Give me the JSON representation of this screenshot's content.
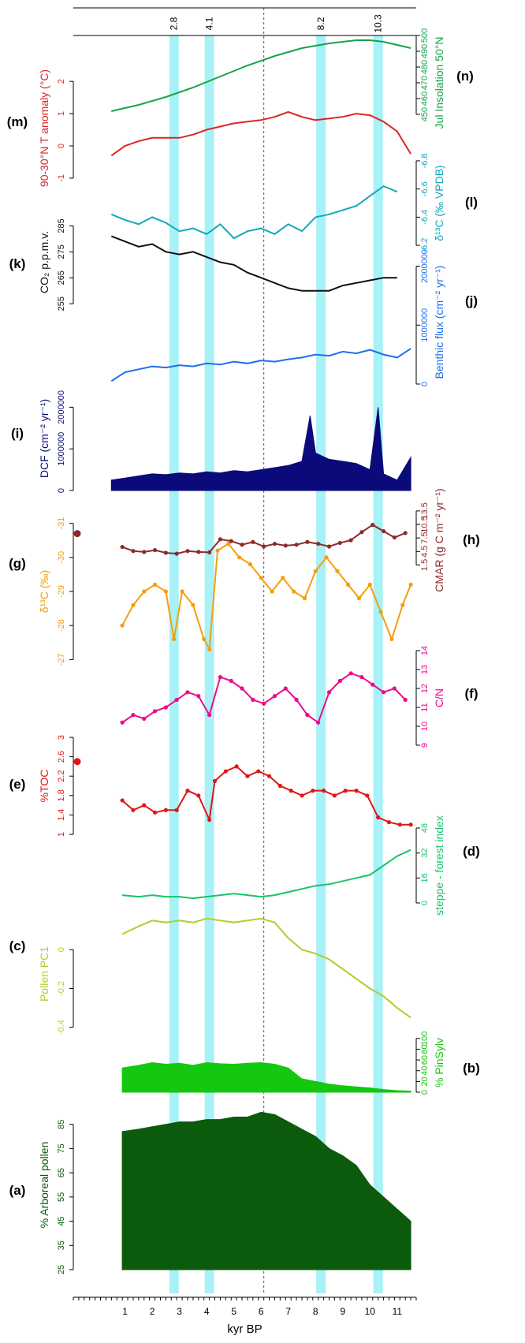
{
  "chart_data": {
    "type": "line",
    "x_axis": {
      "label": "kyr BP",
      "range": [
        -0.9,
        11.7
      ],
      "major_ticks": [
        1,
        2,
        3,
        4,
        5,
        6,
        7,
        8,
        9,
        10,
        11
      ],
      "minor_step": 0.2
    },
    "highlight_bands": [
      {
        "label": "2.8",
        "x": 2.8
      },
      {
        "label": "4.1",
        "x": 4.1
      },
      {
        "label": "8.2",
        "x": 8.2
      },
      {
        "label": "10.3",
        "x": 10.3
      }
    ],
    "band_color": "#a7f1f7",
    "reference_line": {
      "x": 6.1
    },
    "panels": [
      {
        "id": "n",
        "letter": "(n)",
        "ylabel": "Jul Insolation 50°N",
        "side": "right",
        "color": "#16a34a",
        "kind": "line",
        "ylim": [
          440,
          500
        ],
        "ticks": [
          450,
          460,
          470,
          480,
          490,
          500
        ],
        "x": [
          0.5,
          1.5,
          2.5,
          3.5,
          4.5,
          5.5,
          6.5,
          7.5,
          8.5,
          9.5,
          10,
          10.5,
          11.5
        ],
        "y": [
          452,
          456,
          461,
          467,
          474,
          481,
          487,
          492,
          495,
          497,
          497,
          496,
          492
        ]
      },
      {
        "id": "m",
        "letter": "(m)",
        "ylabel": "90-30°N T anomaly (°C)",
        "side": "left",
        "color": "#dc2626",
        "kind": "line",
        "ylim": [
          -1.1,
          2.2
        ],
        "ticks": [
          -1.0,
          0.0,
          1.0,
          2.0
        ],
        "x": [
          0.5,
          1,
          1.5,
          2,
          2.5,
          3,
          3.5,
          4,
          4.5,
          5,
          5.5,
          6,
          6.5,
          7,
          7.5,
          8,
          8.5,
          9,
          9.5,
          10,
          10.5,
          11,
          11.5
        ],
        "y": [
          -0.3,
          0.0,
          0.15,
          0.25,
          0.25,
          0.25,
          0.35,
          0.5,
          0.6,
          0.7,
          0.75,
          0.8,
          0.9,
          1.05,
          0.9,
          0.8,
          0.85,
          0.9,
          1.0,
          0.95,
          0.75,
          0.45,
          -0.25
        ]
      },
      {
        "id": "l",
        "letter": "(l)",
        "ylabel": "δ¹³C (‰ VPDB)",
        "side": "right",
        "color": "#14a8b8",
        "kind": "line",
        "ylim": [
          -6.15,
          -6.85
        ],
        "ticks": [
          -6.2,
          -6.4,
          -6.6,
          -6.8
        ],
        "x": [
          0.5,
          1,
          1.5,
          2,
          2.5,
          3,
          3.5,
          4,
          4.5,
          5,
          5.5,
          6,
          6.5,
          7,
          7.5,
          8,
          8.5,
          9,
          9.5,
          10,
          10.5,
          11
        ],
        "y": [
          -6.42,
          -6.38,
          -6.35,
          -6.4,
          -6.36,
          -6.3,
          -6.32,
          -6.28,
          -6.35,
          -6.25,
          -6.3,
          -6.32,
          -6.28,
          -6.35,
          -6.3,
          -6.4,
          -6.42,
          -6.45,
          -6.48,
          -6.55,
          -6.62,
          -6.58
        ]
      },
      {
        "id": "k",
        "letter": "(k)",
        "ylabel": "CO₂ p.p.m.v.",
        "side": "left",
        "color": "#111111",
        "kind": "line",
        "ylim": [
          252,
          290
        ],
        "ticks": [
          255,
          265,
          275,
          285
        ],
        "x": [
          0.5,
          1,
          1.5,
          2,
          2.5,
          3,
          3.5,
          4,
          4.5,
          5,
          5.5,
          6,
          6.5,
          7,
          7.5,
          8,
          8.5,
          9,
          9.5,
          10,
          10.5,
          11
        ],
        "y": [
          281,
          279,
          277,
          278,
          275,
          274,
          275,
          273,
          271,
          270,
          267,
          265,
          263,
          261,
          260,
          260,
          260,
          262,
          263,
          264,
          265,
          265
        ]
      },
      {
        "id": "j",
        "letter": "(j)",
        "ylabel": "Benthic flux (cm⁻² yr⁻¹)",
        "side": "right",
        "color": "#1e6ff0",
        "kind": "line",
        "ylim": [
          0,
          2100000
        ],
        "ticks": [
          0,
          1000000,
          2000000
        ],
        "x": [
          0.5,
          1,
          1.5,
          2,
          2.5,
          3,
          3.5,
          4,
          4.5,
          5,
          5.5,
          6,
          6.5,
          7,
          7.5,
          8,
          8.5,
          9,
          9.5,
          10,
          10.5,
          11,
          11.5
        ],
        "y": [
          50000,
          200000,
          250000,
          300000,
          280000,
          320000,
          300000,
          350000,
          330000,
          380000,
          350000,
          400000,
          380000,
          420000,
          450000,
          500000,
          480000,
          550000,
          520000,
          580000,
          500000,
          450000,
          600000
        ]
      },
      {
        "id": "i",
        "letter": "(i)",
        "ylabel": "DCF (cm⁻² yr⁻¹)",
        "side": "left",
        "color": "#0a0a7a",
        "kind": "area",
        "ylim": [
          0,
          2500000
        ],
        "ticks": [
          0,
          1000000,
          2000000
        ],
        "x": [
          0.5,
          1,
          1.5,
          2,
          2.5,
          3,
          3.5,
          4,
          4.5,
          5,
          5.5,
          6,
          6.5,
          7,
          7.5,
          7.8,
          8,
          8.5,
          9,
          9.5,
          10,
          10.3,
          10.5,
          11,
          11.5
        ],
        "y": [
          250000,
          300000,
          350000,
          400000,
          380000,
          420000,
          400000,
          450000,
          420000,
          480000,
          450000,
          500000,
          550000,
          600000,
          700000,
          1800000,
          900000,
          750000,
          700000,
          650000,
          500000,
          2000000,
          400000,
          250000,
          800000
        ]
      },
      {
        "id": "h",
        "letter": "(h)",
        "ylabel": "CMAR (g C m⁻² yr⁻¹)",
        "side": "right",
        "color": "#8b2a2a",
        "kind": "line_points",
        "ylim": [
          0,
          14
        ],
        "ticks": [
          1.5,
          4.5,
          7.5,
          10.5,
          13.5
        ],
        "x": [
          0.9,
          1.3,
          1.7,
          2.1,
          2.5,
          2.9,
          3.3,
          3.7,
          4.1,
          4.5,
          4.9,
          5.3,
          5.7,
          6.1,
          6.5,
          6.9,
          7.3,
          7.7,
          8.1,
          8.5,
          8.9,
          9.3,
          9.7,
          10.1,
          10.5,
          10.9,
          11.3
        ],
        "y": [
          5.5,
          4.6,
          4.4,
          4.8,
          4.2,
          4.0,
          4.6,
          4.4,
          4.3,
          7.2,
          6.8,
          6.0,
          6.6,
          5.6,
          6.2,
          5.8,
          6.0,
          6.6,
          6.2,
          5.6,
          6.4,
          7.0,
          8.8,
          10.4,
          9.0,
          7.6,
          8.6
        ]
      },
      {
        "id": "g",
        "letter": "(g)",
        "ylabel": "δ¹³C (‰)",
        "side": "left",
        "color": "#f59e0b",
        "kind": "line_points",
        "ylim": [
          -26.8,
          -31.2
        ],
        "ticks": [
          -27,
          -28,
          -29,
          -30,
          -31
        ],
        "x": [
          0.9,
          1.3,
          1.7,
          2.1,
          2.5,
          2.8,
          3.1,
          3.5,
          3.9,
          4.1,
          4.4,
          4.8,
          5.2,
          5.6,
          6.0,
          6.4,
          6.8,
          7.2,
          7.6,
          8.0,
          8.4,
          8.8,
          9.2,
          9.6,
          10.0,
          10.4,
          10.8,
          11.2,
          11.5
        ],
        "y": [
          -28.0,
          -28.6,
          -29.0,
          -29.2,
          -29.0,
          -27.6,
          -29.0,
          -28.6,
          -27.6,
          -27.3,
          -30.2,
          -30.4,
          -30.0,
          -29.8,
          -29.4,
          -29.0,
          -29.4,
          -29.0,
          -28.8,
          -29.6,
          -30.0,
          -29.6,
          -29.2,
          -28.8,
          -29.2,
          -28.4,
          -27.6,
          -28.6,
          -29.2
        ]
      },
      {
        "id": "f",
        "letter": "(f)",
        "ylabel": "C/N",
        "side": "right",
        "color": "#ec0a8b",
        "kind": "line_points",
        "ylim": [
          9,
          14
        ],
        "ticks": [
          9,
          10,
          11,
          12,
          13,
          14
        ],
        "x": [
          0.9,
          1.3,
          1.7,
          2.1,
          2.5,
          2.9,
          3.3,
          3.7,
          4.1,
          4.5,
          4.9,
          5.3,
          5.7,
          6.1,
          6.5,
          6.9,
          7.3,
          7.7,
          8.1,
          8.5,
          8.9,
          9.3,
          9.7,
          10.1,
          10.5,
          10.9,
          11.3
        ],
        "y": [
          10.2,
          10.6,
          10.4,
          10.8,
          11.0,
          11.4,
          11.8,
          11.6,
          10.6,
          12.6,
          12.4,
          12.0,
          11.4,
          11.2,
          11.6,
          12.0,
          11.4,
          10.6,
          10.2,
          11.8,
          12.4,
          12.8,
          12.6,
          12.2,
          11.8,
          12.0,
          11.4
        ]
      },
      {
        "id": "e",
        "letter": "(e)",
        "ylabel": "%TOC",
        "side": "left",
        "color": "#e01515",
        "kind": "line_points",
        "ylim": [
          1.0,
          3.0
        ],
        "ticks": [
          1.0,
          1.4,
          1.8,
          2.2,
          2.6,
          3.0
        ],
        "x": [
          0.9,
          1.3,
          1.7,
          2.1,
          2.5,
          2.9,
          3.3,
          3.7,
          4.1,
          4.3,
          4.7,
          5.1,
          5.5,
          5.9,
          6.3,
          6.7,
          7.1,
          7.5,
          7.9,
          8.3,
          8.7,
          9.1,
          9.5,
          9.9,
          10.3,
          10.7,
          11.1,
          11.5
        ],
        "y": [
          1.7,
          1.5,
          1.6,
          1.45,
          1.5,
          1.5,
          1.9,
          1.8,
          1.3,
          2.1,
          2.3,
          2.4,
          2.2,
          2.3,
          2.2,
          2.0,
          1.9,
          1.8,
          1.9,
          1.9,
          1.8,
          1.9,
          1.9,
          1.8,
          1.35,
          1.25,
          1.2,
          1.2
        ]
      },
      {
        "id": "d",
        "letter": "(d)",
        "ylabel": "steppe - forest index",
        "side": "right",
        "color": "#17c46a",
        "kind": "line",
        "ylim": [
          0,
          48
        ],
        "ticks": [
          0,
          16,
          32,
          48
        ],
        "x": [
          0.9,
          1.5,
          2,
          2.5,
          3,
          3.5,
          4,
          4.5,
          5,
          5.5,
          6,
          6.5,
          7,
          7.5,
          8,
          8.5,
          9,
          9.5,
          10,
          10.5,
          11,
          11.5
        ],
        "y": [
          5,
          4,
          5,
          4,
          4,
          3,
          4,
          5,
          6,
          5,
          4,
          5,
          7,
          9,
          11,
          12,
          14,
          16,
          18,
          24,
          30,
          34
        ]
      },
      {
        "id": "c",
        "letter": "(c)",
        "ylabel": "Pollen PC1",
        "side": "left",
        "color": "#b5cc2a",
        "kind": "line",
        "ylim": [
          -0.45,
          0.2
        ],
        "ticks": [
          -0.4,
          -0.2,
          0.0
        ],
        "x": [
          0.9,
          1.5,
          2,
          2.5,
          3,
          3.5,
          4,
          4.5,
          5,
          5.5,
          6,
          6.5,
          7,
          7.5,
          8,
          8.5,
          9,
          9.5,
          10,
          10.5,
          11,
          11.5
        ],
        "y": [
          0.08,
          0.12,
          0.15,
          0.14,
          0.15,
          0.14,
          0.16,
          0.15,
          0.14,
          0.15,
          0.16,
          0.14,
          0.06,
          0.0,
          -0.02,
          -0.05,
          -0.1,
          -0.15,
          -0.2,
          -0.24,
          -0.3,
          -0.35
        ]
      },
      {
        "id": "b",
        "letter": "(b)",
        "ylabel": "% PinSylv",
        "side": "right",
        "color": "#14c80f",
        "kind": "area",
        "ylim": [
          0,
          110
        ],
        "ticks": [
          0,
          20,
          40,
          60,
          80,
          100
        ],
        "x": [
          0.9,
          1.5,
          2,
          2.5,
          3,
          3.5,
          4,
          4.5,
          5,
          5.5,
          6,
          6.5,
          7,
          7.5,
          8,
          8.5,
          9,
          9.5,
          10,
          10.5,
          11,
          11.5
        ],
        "y": [
          45,
          50,
          55,
          52,
          54,
          50,
          55,
          53,
          52,
          54,
          55,
          52,
          45,
          25,
          20,
          15,
          12,
          10,
          8,
          5,
          3,
          2
        ]
      },
      {
        "id": "a",
        "letter": "(a)",
        "ylabel": "% Arboreal pollen",
        "side": "left",
        "color": "#0c5a0c",
        "kind": "area",
        "ylim": [
          25,
          95
        ],
        "ticks": [
          25,
          35,
          45,
          55,
          65,
          75,
          85
        ],
        "x": [
          0.9,
          1.5,
          2,
          2.5,
          3,
          3.5,
          4,
          4.5,
          5,
          5.5,
          6,
          6.5,
          7,
          7.5,
          8,
          8.5,
          9,
          9.5,
          10,
          10.5,
          11,
          11.5
        ],
        "y": [
          82,
          83,
          84,
          85,
          86,
          86,
          87,
          87,
          88,
          88,
          90,
          89,
          86,
          83,
          80,
          75,
          72,
          68,
          60,
          55,
          50,
          45
        ]
      }
    ],
    "point_markers": [
      {
        "panel": "g",
        "x": -0.5,
        "y": -30.7,
        "color": "#8b2a2a"
      },
      {
        "panel": "e",
        "x": -0.5,
        "y": 2.5,
        "color": "#e01515"
      }
    ]
  }
}
